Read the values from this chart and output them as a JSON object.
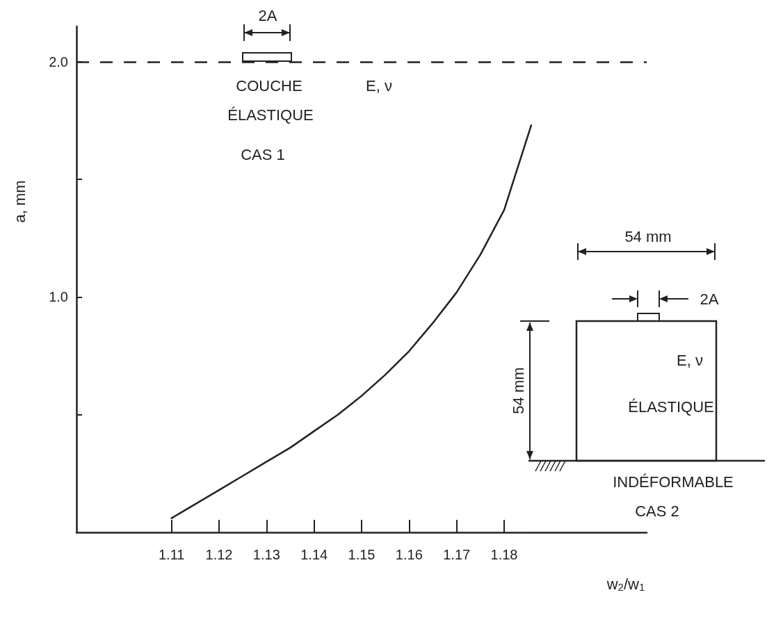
{
  "chart_data": {
    "type": "line",
    "xlabel": "w$_{2}$/w$_{1}$",
    "ylabel": "a, mm",
    "x": [
      1.11,
      1.115,
      1.12,
      1.125,
      1.13,
      1.135,
      1.14,
      1.145,
      1.15,
      1.155,
      1.16,
      1.165,
      1.17,
      1.175,
      1.18,
      1.1857
    ],
    "series": [
      {
        "color": "#222222",
        "values": [
          0.06,
          0.12,
          0.18,
          0.24,
          0.3,
          0.36,
          0.43,
          0.5,
          0.58,
          0.67,
          0.77,
          0.89,
          1.02,
          1.18,
          1.37,
          1.73
        ]
      }
    ],
    "xlim": [
      1.09,
      1.21
    ],
    "xticks": [
      1.11,
      1.12,
      1.13,
      1.14,
      1.15,
      1.16,
      1.17,
      1.18
    ],
    "ylim": [
      0,
      2.15
    ],
    "yticks": [
      {
        "value": 0.5,
        "label": null
      },
      {
        "value": 1,
        "label": "1.0"
      },
      {
        "value": 1.5,
        "label": null
      },
      {
        "value": 2,
        "label": "2.0"
      }
    ],
    "ref_lines": [
      {
        "axis": "y",
        "value": 2,
        "line_style": "dashed",
        "color": "#222222"
      }
    ],
    "annotations": [
      "2A",
      "COUCHE",
      "ÉLASTIQUE",
      "E, ν",
      "CAS 1",
      "54 mm",
      "2A",
      "54 mm",
      "E, ν",
      "ÉLASTIQUE",
      "INDÉFORMABLE",
      "CAS 2"
    ],
    "grid": false,
    "marker": "none",
    "line_style": "solid"
  }
}
